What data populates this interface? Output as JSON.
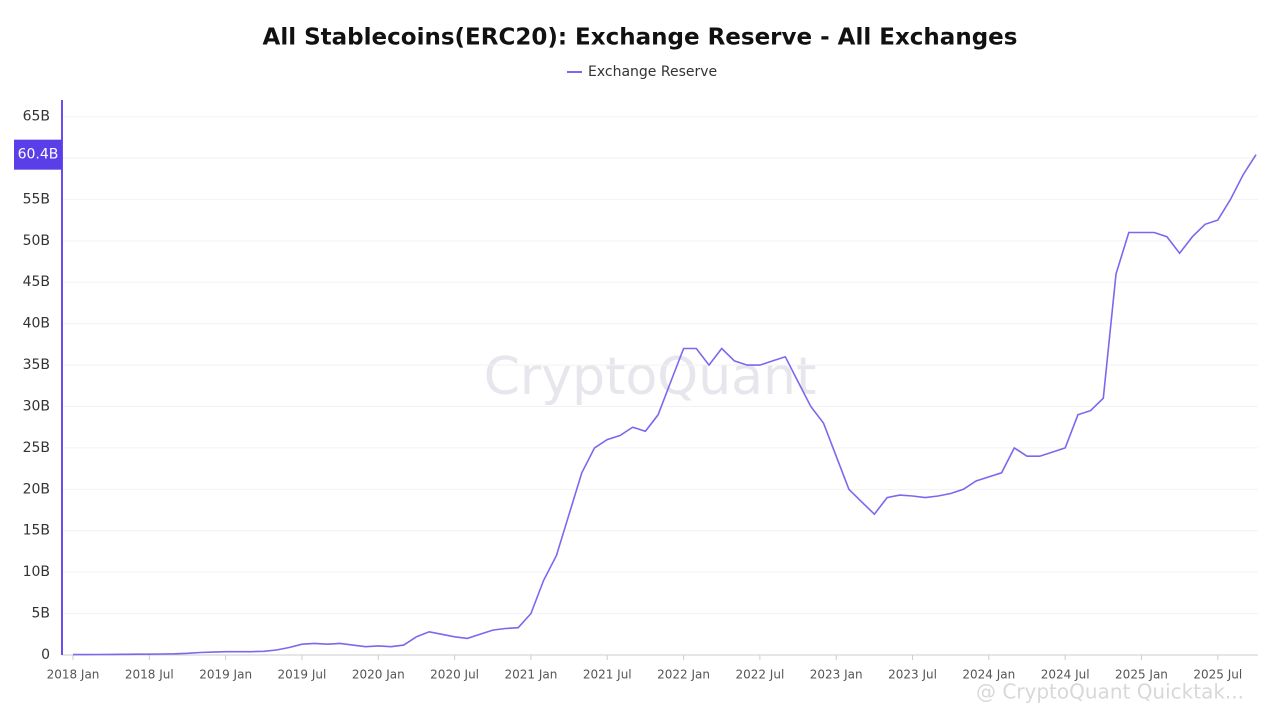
{
  "chart_data": {
    "type": "line",
    "title": "All Stablecoins(ERC20): Exchange Reserve - All Exchanges",
    "watermark": "CryptoQuant",
    "footer_watermark": "@ CryptoQuant Quicktak...",
    "legend": "top",
    "grid": true,
    "x": [
      "2018-01",
      "2018-02",
      "2018-03",
      "2018-04",
      "2018-05",
      "2018-06",
      "2018-07",
      "2018-08",
      "2018-09",
      "2018-10",
      "2018-11",
      "2018-12",
      "2019-01",
      "2019-02",
      "2019-03",
      "2019-04",
      "2019-05",
      "2019-06",
      "2019-07",
      "2019-08",
      "2019-09",
      "2019-10",
      "2019-11",
      "2019-12",
      "2020-01",
      "2020-02",
      "2020-03",
      "2020-04",
      "2020-05",
      "2020-06",
      "2020-07",
      "2020-08",
      "2020-09",
      "2020-10",
      "2020-11",
      "2020-12",
      "2021-01",
      "2021-02",
      "2021-03",
      "2021-04",
      "2021-05",
      "2021-06",
      "2021-07",
      "2021-08",
      "2021-09",
      "2021-10",
      "2021-11",
      "2021-12",
      "2022-01",
      "2022-02",
      "2022-03",
      "2022-04",
      "2022-05",
      "2022-06",
      "2022-07",
      "2022-08",
      "2022-09",
      "2022-10",
      "2022-11",
      "2022-12",
      "2023-01",
      "2023-02",
      "2023-03",
      "2023-04",
      "2023-05",
      "2023-06",
      "2023-07",
      "2023-08",
      "2023-09",
      "2023-10",
      "2023-11",
      "2023-12",
      "2024-01",
      "2024-02",
      "2024-03",
      "2024-04",
      "2024-05",
      "2024-06",
      "2024-07",
      "2024-08",
      "2024-09",
      "2024-10",
      "2024-11",
      "2024-12",
      "2025-01",
      "2025-02",
      "2025-03",
      "2025-04",
      "2025-05",
      "2025-06",
      "2025-07",
      "2025-08",
      "2025-09",
      "2025-10"
    ],
    "series": [
      {
        "name": "Exchange Reserve",
        "color": "#7b68ee",
        "values": [
          0.05,
          0.05,
          0.06,
          0.07,
          0.08,
          0.1,
          0.1,
          0.12,
          0.15,
          0.2,
          0.3,
          0.35,
          0.4,
          0.4,
          0.4,
          0.45,
          0.6,
          0.9,
          1.3,
          1.4,
          1.3,
          1.4,
          1.2,
          1.0,
          1.1,
          1.0,
          1.2,
          2.2,
          2.8,
          2.5,
          2.2,
          2.0,
          2.5,
          3.0,
          3.2,
          3.3,
          5.0,
          9.0,
          12.0,
          17.0,
          22.0,
          25.0,
          26.0,
          26.5,
          27.5,
          27.0,
          29.0,
          33.0,
          37.0,
          37.0,
          35.0,
          37.0,
          35.5,
          35.0,
          35.0,
          35.5,
          36.0,
          33.0,
          30.0,
          28.0,
          24.0,
          20.0,
          18.5,
          17.0,
          19.0,
          19.3,
          19.2,
          19.0,
          19.2,
          19.5,
          20.0,
          21.0,
          21.5,
          22.0,
          25.0,
          24.0,
          24.0,
          24.5,
          25.0,
          29.0,
          29.5,
          31.0,
          46.0,
          51.0,
          51.0,
          51.0,
          50.5,
          48.5,
          50.5,
          52.0,
          52.5,
          55.0,
          58.0,
          60.4
        ]
      }
    ],
    "current_value": {
      "value": 60.4,
      "label": "60.4B"
    },
    "ylim": [
      0,
      67
    ],
    "yticks": [
      0,
      {
        "value": 5,
        "label": "5B"
      },
      {
        "value": 10,
        "label": "10B"
      },
      {
        "value": 15,
        "label": "15B"
      },
      {
        "value": 20,
        "label": "20B"
      },
      {
        "value": 25,
        "label": "25B"
      },
      {
        "value": 30,
        "label": "30B"
      },
      {
        "value": 35,
        "label": "35B"
      },
      {
        "value": 40,
        "label": "40B"
      },
      {
        "value": 45,
        "label": "45B"
      },
      {
        "value": 50,
        "label": "50B"
      },
      {
        "value": 55,
        "label": "55B"
      },
      {
        "value": 60,
        "label": "60B"
      },
      {
        "value": 65,
        "label": "65B"
      }
    ],
    "xticks": [
      {
        "value": "2018-01",
        "label": "2018 Jan"
      },
      {
        "value": "2018-07",
        "label": "2018 Jul"
      },
      {
        "value": "2019-01",
        "label": "2019 Jan"
      },
      {
        "value": "2019-07",
        "label": "2019 Jul"
      },
      {
        "value": "2020-01",
        "label": "2020 Jan"
      },
      {
        "value": "2020-07",
        "label": "2020 Jul"
      },
      {
        "value": "2021-01",
        "label": "2021 Jan"
      },
      {
        "value": "2021-07",
        "label": "2021 Jul"
      },
      {
        "value": "2022-01",
        "label": "2022 Jan"
      },
      {
        "value": "2022-07",
        "label": "2022 Jul"
      },
      {
        "value": "2023-01",
        "label": "2023 Jan"
      },
      {
        "value": "2023-07",
        "label": "2023 Jul"
      },
      {
        "value": "2024-01",
        "label": "2024 Jan"
      },
      {
        "value": "2024-07",
        "label": "2024 Jul"
      },
      {
        "value": "2025-01",
        "label": "2025 Jan"
      },
      {
        "value": "2025-07",
        "label": "2025 Jul"
      }
    ]
  }
}
